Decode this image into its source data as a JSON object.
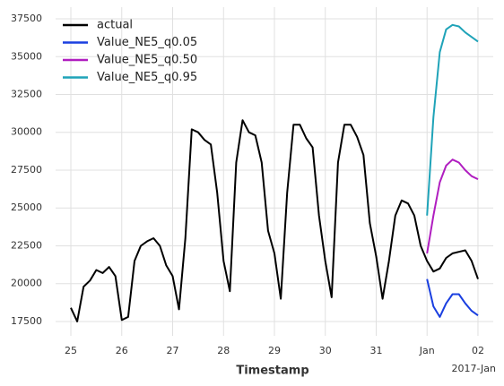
{
  "chart_data": {
    "type": "line",
    "x_label": "Timestamp",
    "x_offset_label": "2017-Jan",
    "xlim": [
      24.7,
      33.3
    ],
    "xticks": [
      25,
      26,
      27,
      28,
      29,
      30,
      31,
      {
        "value": 32,
        "label": "Jan"
      },
      {
        "value": 33,
        "label": "02"
      }
    ],
    "ylim": [
      16550,
      38270
    ],
    "yticks": [
      17500,
      20000,
      22500,
      25000,
      27500,
      30000,
      32500,
      35000,
      37500
    ],
    "grid": true,
    "legend": "upper left",
    "series": [
      {
        "name": "actual",
        "color": "#000000",
        "x": [
          25.0,
          25.125,
          25.25,
          25.375,
          25.5,
          25.625,
          25.75,
          25.875,
          26.0,
          26.125,
          26.25,
          26.375,
          26.5,
          26.625,
          26.75,
          26.875,
          27.0,
          27.125,
          27.25,
          27.375,
          27.5,
          27.625,
          27.75,
          27.875,
          28.0,
          28.125,
          28.25,
          28.375,
          28.5,
          28.625,
          28.75,
          28.875,
          29.0,
          29.125,
          29.25,
          29.375,
          29.5,
          29.625,
          29.75,
          29.875,
          30.0,
          30.125,
          30.25,
          30.375,
          30.5,
          30.625,
          30.75,
          30.875,
          31.0,
          31.125,
          31.25,
          31.375,
          31.5,
          31.625,
          31.75,
          31.875,
          32.0,
          32.125,
          32.25,
          32.375,
          32.5,
          32.625,
          32.75,
          32.875,
          33.0
        ],
        "values": [
          18400,
          17500,
          19800,
          20200,
          20900,
          20700,
          21100,
          20500,
          17600,
          17800,
          21500,
          22500,
          22800,
          23000,
          22500,
          21200,
          20500,
          18300,
          23000,
          30200,
          30000,
          29500,
          29200,
          26000,
          21500,
          19500,
          28000,
          30800,
          30000,
          29800,
          28000,
          23500,
          22000,
          19000,
          26000,
          30500,
          30500,
          29600,
          29000,
          24500,
          21500,
          19100,
          28000,
          30500,
          30500,
          29700,
          28500,
          24000,
          21800,
          19000,
          21500,
          24500,
          25500,
          25300,
          24500,
          22500,
          21500,
          20800,
          21000,
          21700,
          22000,
          22100,
          22200,
          21500,
          20300
        ]
      },
      {
        "name": "Value_NE5_q0.05",
        "color": "#1a3fe0",
        "x": [
          32.0,
          32.125,
          32.25,
          32.375,
          32.5,
          32.625,
          32.75,
          32.875,
          33.0
        ],
        "values": [
          20300,
          18500,
          17800,
          18700,
          19300,
          19300,
          18700,
          18200,
          17900
        ]
      },
      {
        "name": "Value_NE5_q0.50",
        "color": "#b01ec0",
        "x": [
          32.0,
          32.125,
          32.25,
          32.375,
          32.5,
          32.625,
          32.75,
          32.875,
          33.0
        ],
        "values": [
          22000,
          24500,
          26700,
          27800,
          28200,
          28000,
          27500,
          27100,
          26900
        ]
      },
      {
        "name": "Value_NE5_q0.95",
        "color": "#1fa3b8",
        "x": [
          32.0,
          32.125,
          32.25,
          32.375,
          32.5,
          32.625,
          32.75,
          32.875,
          33.0
        ],
        "values": [
          24500,
          31000,
          35300,
          36800,
          37100,
          37000,
          36600,
          36300,
          36000
        ]
      }
    ]
  }
}
